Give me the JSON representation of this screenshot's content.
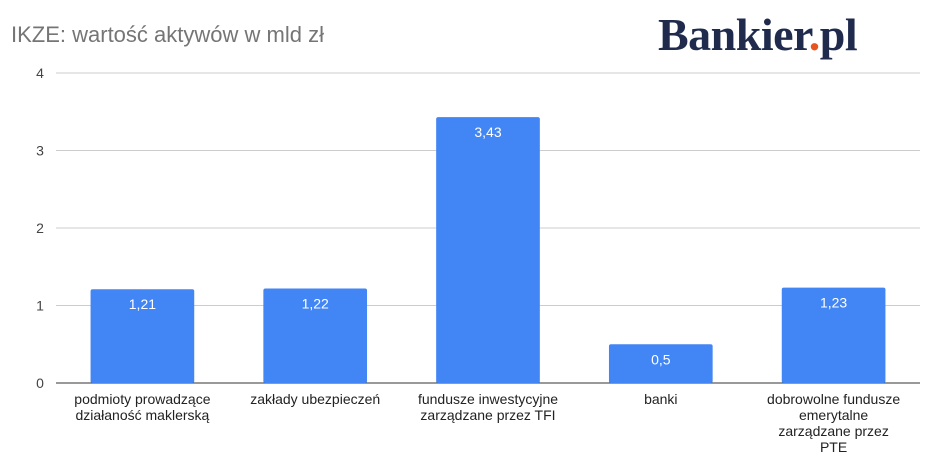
{
  "chart_data": {
    "type": "bar",
    "title": "IKZE: wartość aktywów w mld zł",
    "categories": [
      [
        "podmioty prowadzące",
        "działaność maklerską"
      ],
      [
        "zakłady ubezpieczeń"
      ],
      [
        "fundusze inwestycyjne",
        "zarządzane przez TFI"
      ],
      [
        "banki"
      ],
      [
        "dobrowolne fundusze",
        "emerytalne",
        "zarządzane przez",
        "PTE"
      ]
    ],
    "values": [
      1.21,
      1.22,
      3.43,
      0.5,
      1.23
    ],
    "value_labels": [
      "1,21",
      "1,22",
      "3,43",
      "0,5",
      "1,23"
    ],
    "yticks": [
      0,
      1,
      2,
      3,
      4
    ],
    "ylim": [
      0,
      4
    ],
    "xlabel": "",
    "ylabel": "",
    "grid": true,
    "bar_color": "#4285f4"
  },
  "brand": {
    "name": "Bankier",
    "dot": ".",
    "suffix": "pl"
  }
}
